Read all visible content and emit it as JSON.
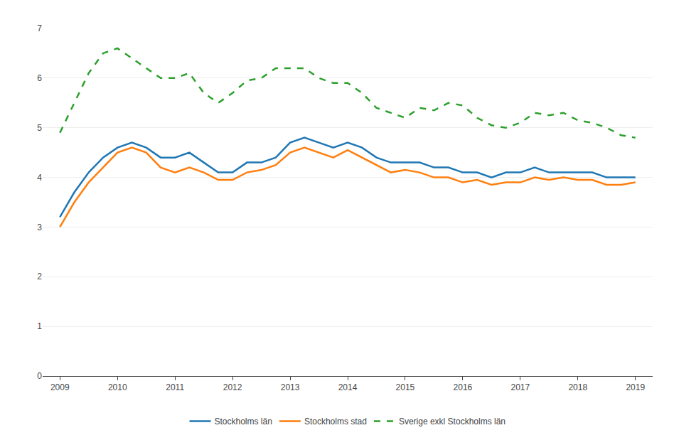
{
  "chart_data": {
    "type": "line",
    "x": [
      2009.0,
      2009.25,
      2009.5,
      2009.75,
      2010.0,
      2010.25,
      2010.5,
      2010.75,
      2011.0,
      2011.25,
      2011.5,
      2011.75,
      2012.0,
      2012.25,
      2012.5,
      2012.75,
      2013.0,
      2013.25,
      2013.5,
      2013.75,
      2014.0,
      2014.25,
      2014.5,
      2014.75,
      2015.0,
      2015.25,
      2015.5,
      2015.75,
      2016.0,
      2016.25,
      2016.5,
      2016.75,
      2017.0,
      2017.25,
      2017.5,
      2017.75,
      2018.0,
      2018.25,
      2018.5,
      2018.75,
      2019.0
    ],
    "series": [
      {
        "name": "Stockholms län",
        "line_style": "solid",
        "values": [
          3.2,
          3.7,
          4.1,
          4.4,
          4.6,
          4.7,
          4.6,
          4.4,
          4.4,
          4.5,
          4.3,
          4.1,
          4.1,
          4.3,
          4.3,
          4.4,
          4.7,
          4.8,
          4.7,
          4.6,
          4.7,
          4.6,
          4.4,
          4.3,
          4.3,
          4.3,
          4.2,
          4.2,
          4.1,
          4.1,
          4.0,
          4.1,
          4.1,
          4.2,
          4.1,
          4.1,
          4.1,
          4.1,
          4.0,
          4.0,
          4.0
        ]
      },
      {
        "name": "Stockholms stad",
        "line_style": "solid",
        "values": [
          3.0,
          3.5,
          3.9,
          4.2,
          4.5,
          4.6,
          4.5,
          4.2,
          4.1,
          4.2,
          4.1,
          3.95,
          3.95,
          4.1,
          4.15,
          4.25,
          4.5,
          4.6,
          4.5,
          4.4,
          4.55,
          4.4,
          4.25,
          4.1,
          4.15,
          4.1,
          4.0,
          4.0,
          3.9,
          3.95,
          3.85,
          3.9,
          3.9,
          4.0,
          3.95,
          4.0,
          3.95,
          3.95,
          3.85,
          3.85,
          3.9
        ]
      },
      {
        "name": "Sverige exkl Stockholms län",
        "line_style": "dashed",
        "values": [
          4.9,
          5.5,
          6.1,
          6.5,
          6.6,
          6.4,
          6.2,
          6.0,
          6.0,
          6.1,
          5.7,
          5.5,
          5.7,
          5.95,
          6.0,
          6.2,
          6.2,
          6.2,
          6.0,
          5.9,
          5.9,
          5.7,
          5.4,
          5.3,
          5.2,
          5.4,
          5.35,
          5.5,
          5.45,
          5.2,
          5.05,
          5.0,
          5.1,
          5.3,
          5.25,
          5.3,
          5.15,
          5.1,
          5.0,
          4.85,
          4.8
        ]
      }
    ],
    "xlim": [
      2008.7,
      2019.3
    ],
    "xticks": [
      2009,
      2010,
      2011,
      2012,
      2013,
      2014,
      2015,
      2016,
      2017,
      2018,
      2019
    ],
    "ylim": [
      0,
      7
    ],
    "yticks": [
      0,
      1,
      2,
      3,
      4,
      5,
      6,
      7
    ],
    "grid": true,
    "legend": "bottom"
  }
}
